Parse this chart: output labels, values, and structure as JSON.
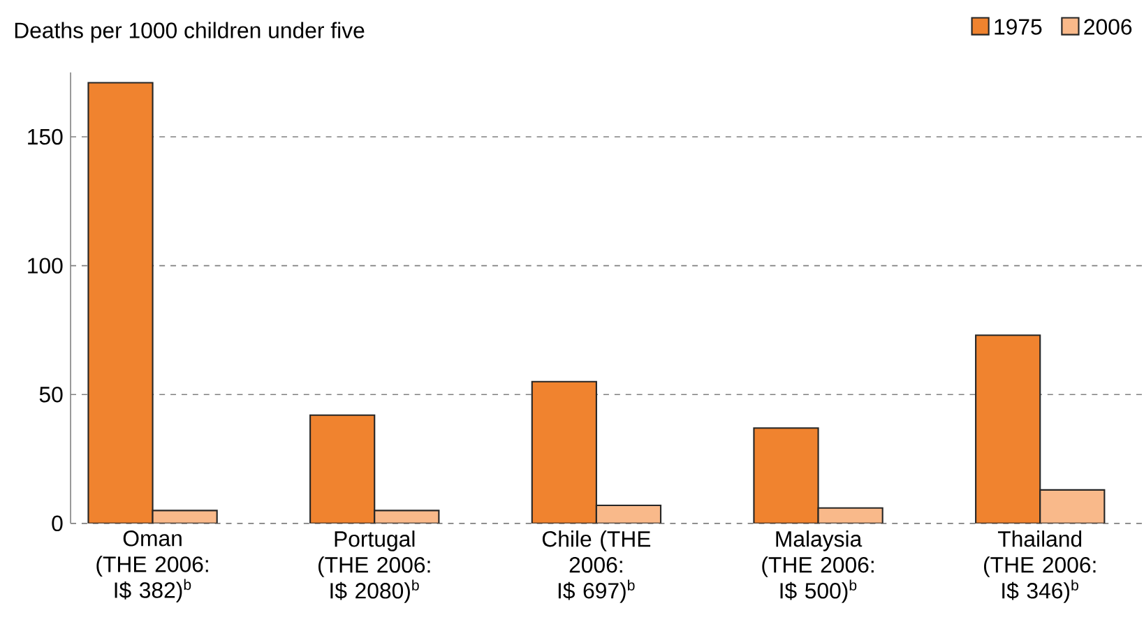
{
  "chart_data": {
    "type": "bar",
    "ylabel": "Deaths per 1000 children under five",
    "categories": [
      "Oman (THE 2006: I$ 382)$^{b}$",
      "Portugal (THE 2006: I$ 2080)$^{b}$",
      "Chile (THE 2006: I$ 697)$^{b}$",
      "Malaysia (THE 2006: I$ 500)$^{b}$",
      "Thailand (THE 2006: I$ 346)$^{b}$"
    ],
    "series": [
      {
        "name": "1975",
        "color": "#f0832f",
        "values": [
          171,
          42,
          55,
          37,
          73
        ]
      },
      {
        "name": "2006",
        "color": "#f9b98a",
        "values": [
          5,
          5,
          7,
          6,
          13
        ]
      }
    ],
    "ylim": [
      0,
      175
    ],
    "yticks": [
      0,
      50,
      100,
      150
    ],
    "grid": "y",
    "legend": "top right"
  }
}
